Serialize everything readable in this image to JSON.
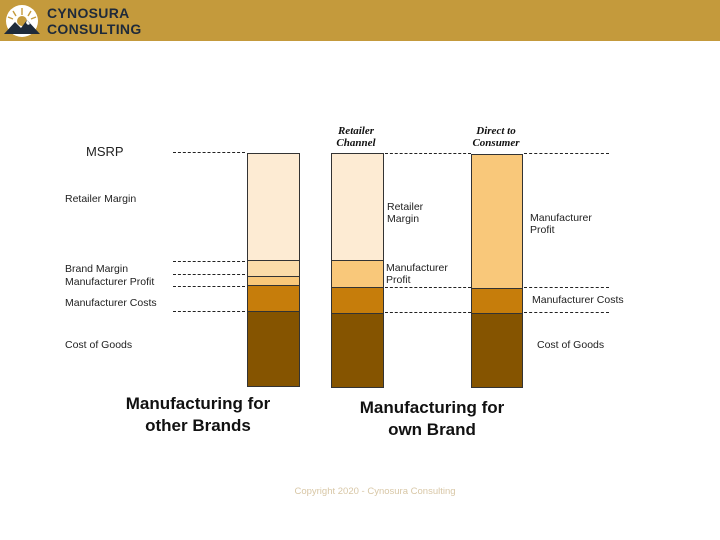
{
  "header": {
    "company_line1": "CYNOSURA",
    "company_line2": "CONSULTING",
    "brand_color": "#c49a3c"
  },
  "diagram": {
    "left_labels": {
      "msrp": "MSRP",
      "retailer_margin": "Retailer Margin",
      "brand_margin": "Brand Margin",
      "manufacturer_profit": "Manufacturer Profit",
      "manufacturer_costs": "Manufacturer Costs",
      "cost_of_goods": "Cost of Goods"
    },
    "retailer_channel": {
      "header": "Retailer Channel",
      "retailer_margin": "Retailer Margin",
      "manufacturer_profit": "Manufacturer Profit"
    },
    "direct_to_consumer": {
      "header": "Direct to Consumer",
      "manufacturer_profit": "Manufacturer Profit",
      "manufacturer_costs": "Manufacturer Costs",
      "cost_of_goods": "Cost of Goods"
    },
    "captions": {
      "other_brands": "Manufacturing for other Brands",
      "own_brand": "Manufacturing for own Brand"
    },
    "colors": {
      "retailer_margin": "#fdebd3",
      "brand_margin": "#fbdca9",
      "manufacturer_profit": "#f9c87a",
      "manufacturer_costs": "#c67d0b",
      "cost_of_goods": "#855400"
    }
  },
  "footer": {
    "copyright": "Copyright 2020 - Cynosura Consulting"
  }
}
